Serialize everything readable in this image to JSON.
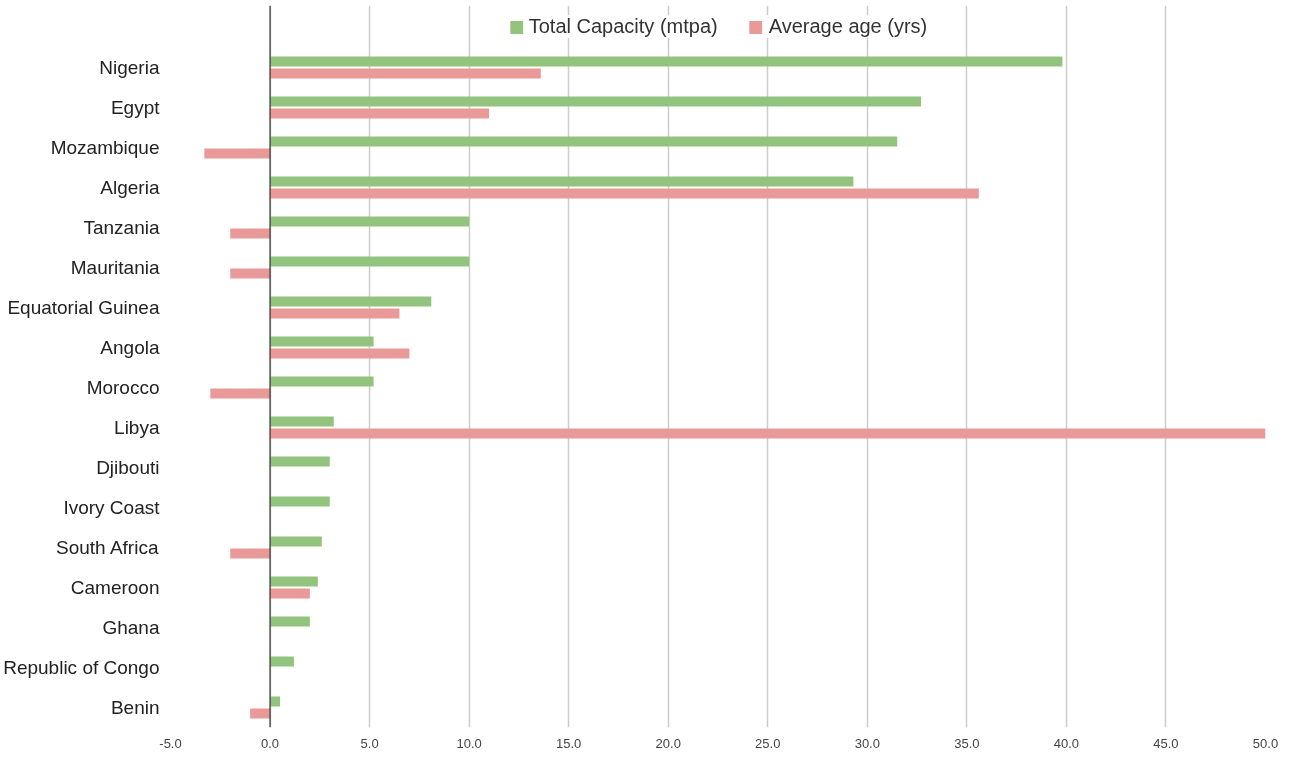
{
  "chart_data": {
    "type": "bar",
    "orientation": "horizontal",
    "categories": [
      "Nigeria",
      "Egypt",
      "Mozambique",
      "Algeria",
      "Tanzania",
      "Mauritania",
      "Equatorial Guinea",
      "Angola",
      "Morocco",
      "Libya",
      "Djibouti",
      "Ivory Coast",
      "South Africa",
      "Cameroon",
      "Ghana",
      "Republic of Congo",
      "Benin"
    ],
    "series": [
      {
        "name": "Total Capacity (mtpa)",
        "color": "#93c47d",
        "values": [
          39.8,
          32.7,
          31.5,
          29.3,
          10.0,
          10.0,
          8.1,
          5.2,
          5.2,
          3.2,
          3.0,
          3.0,
          2.6,
          2.4,
          2.0,
          1.2,
          0.5
        ]
      },
      {
        "name": "Average age (yrs)",
        "color": "#ea9999",
        "values": [
          13.6,
          11.0,
          -3.3,
          35.6,
          -2.0,
          -2.0,
          6.5,
          7.0,
          -3.0,
          50.0,
          null,
          null,
          -2.0,
          2.0,
          null,
          null,
          -1.0
        ]
      }
    ],
    "xlim": [
      -5,
      50
    ],
    "xticks": [
      {
        "value": -5,
        "label": "-5.0"
      },
      {
        "value": 0,
        "label": "0.0"
      },
      {
        "value": 5,
        "label": "5.0"
      },
      {
        "value": 10,
        "label": "10.0"
      },
      {
        "value": 15,
        "label": "15.0"
      },
      {
        "value": 20,
        "label": "20.0"
      },
      {
        "value": 25,
        "label": "25.0"
      },
      {
        "value": 30,
        "label": "30.0"
      },
      {
        "value": 35,
        "label": "35.0"
      },
      {
        "value": 40,
        "label": "40.0"
      },
      {
        "value": 45,
        "label": "45.0"
      },
      {
        "value": 50,
        "label": "50.0"
      }
    ],
    "grid": "x",
    "legend": "top"
  }
}
